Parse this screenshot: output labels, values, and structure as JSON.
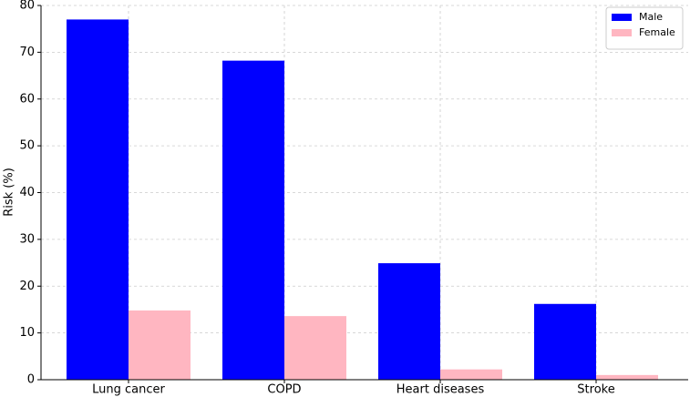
{
  "chart_data": {
    "type": "grouped-bar",
    "ylabel": "Risk (%)",
    "categories": [
      "Lung cancer",
      "COPD",
      "Heart diseases",
      "Stroke"
    ],
    "series": [
      {
        "name": "Male",
        "color": "#0000ff",
        "values": [
          77,
          68.2,
          24.9,
          16.2
        ]
      },
      {
        "name": "Female",
        "color": "#ffb6c1",
        "values": [
          14.8,
          13.6,
          2.2,
          1.0
        ]
      }
    ],
    "ylim": [
      0,
      80
    ],
    "yticks": [
      0,
      10,
      20,
      30,
      40,
      50,
      60,
      70,
      80
    ],
    "grid": true,
    "legend": "upper right"
  }
}
